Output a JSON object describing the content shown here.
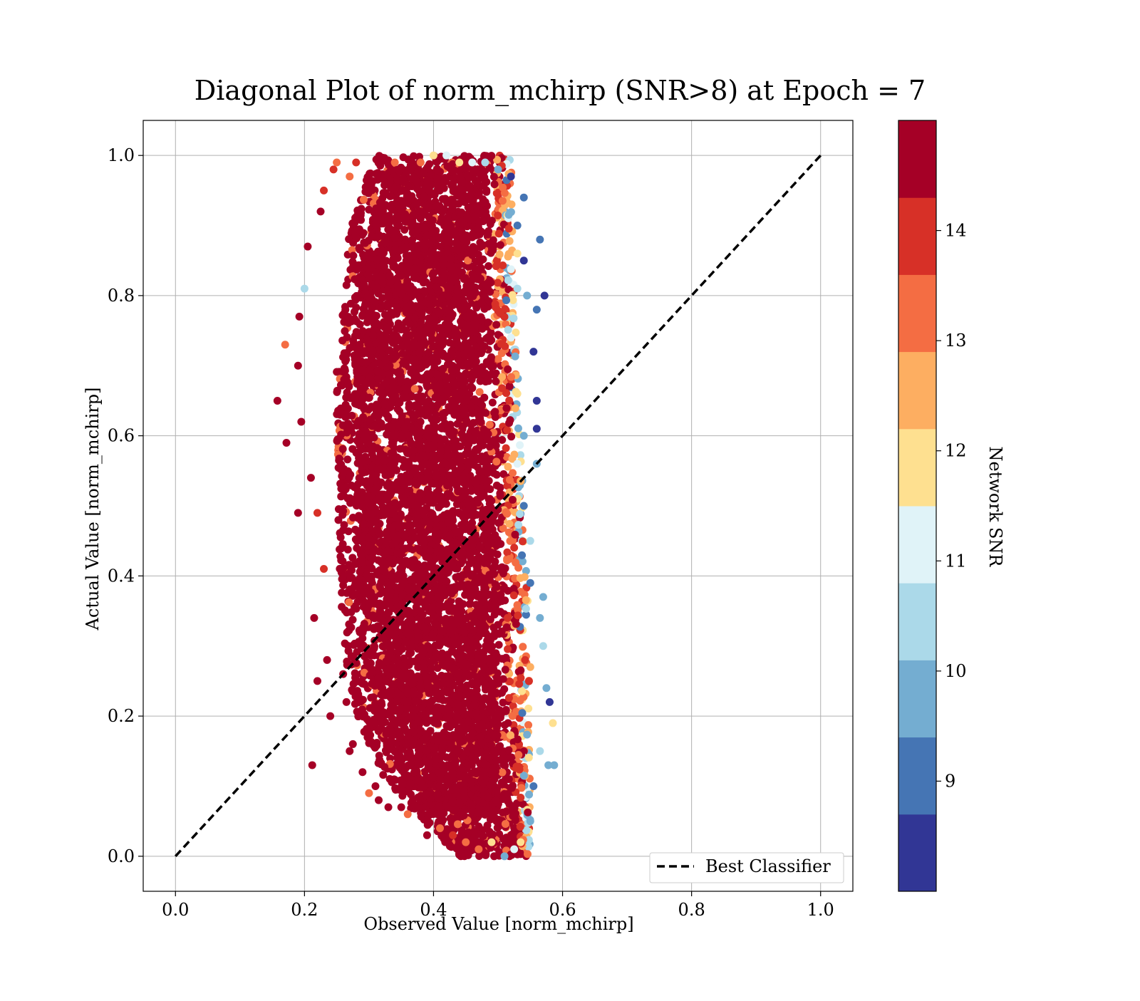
{
  "chart_data": {
    "type": "scatter",
    "title": "Diagonal Plot of norm_mchirp (SNR>8) at Epoch = 7",
    "xlabel": "Observed Value [norm_mchirp]",
    "ylabel": "Actual Value [norm_mchirp]",
    "xlim": [
      -0.05,
      1.05
    ],
    "ylim": [
      -0.05,
      1.05
    ],
    "x_ticks": [
      0.0,
      0.2,
      0.4,
      0.6,
      0.8,
      1.0
    ],
    "x_tick_labels": [
      "0.0",
      "0.2",
      "0.4",
      "0.6",
      "0.8",
      "1.0"
    ],
    "y_ticks": [
      0.0,
      0.2,
      0.4,
      0.6,
      0.8,
      1.0
    ],
    "y_tick_labels": [
      "0.0",
      "0.2",
      "0.4",
      "0.6",
      "0.8",
      "1.0"
    ],
    "grid": true,
    "legend": {
      "placement": "lower-right",
      "entries": [
        {
          "label": "Best Classifier",
          "style": "dashed",
          "color": "#000000"
        }
      ]
    },
    "reference_line": {
      "label": "Best Classifier",
      "x": [
        0.0,
        1.0
      ],
      "y": [
        0.0,
        1.0
      ],
      "style": "dashed",
      "color": "#000000"
    },
    "colorbar": {
      "label": "Network SNR",
      "range": [
        8.0,
        15.0
      ],
      "ticks": [
        9,
        10,
        11,
        12,
        13,
        14
      ],
      "tick_labels": [
        "9",
        "10",
        "11",
        "12",
        "13",
        "14"
      ],
      "colors": [
        "#313695",
        "#4575b4",
        "#74add1",
        "#abd9e9",
        "#e0f3f8",
        "#fee090",
        "#fdae61",
        "#f46d43",
        "#d73027",
        "#a50026"
      ]
    },
    "series": [
      {
        "description_points": "x (observed), y (actual), snr",
        "points": [
          [
            0.158,
            0.65,
            15
          ],
          [
            0.17,
            0.73,
            13.5
          ],
          [
            0.172,
            0.59,
            15
          ],
          [
            0.19,
            0.7,
            15
          ],
          [
            0.192,
            0.77,
            15
          ],
          [
            0.195,
            0.62,
            15
          ],
          [
            0.19,
            0.49,
            15
          ],
          [
            0.2,
            0.81,
            10.5
          ],
          [
            0.205,
            0.87,
            15
          ],
          [
            0.21,
            0.54,
            15
          ],
          [
            0.212,
            0.13,
            15
          ],
          [
            0.215,
            0.34,
            15
          ],
          [
            0.22,
            0.25,
            15
          ],
          [
            0.22,
            0.49,
            14
          ],
          [
            0.225,
            0.92,
            15
          ],
          [
            0.23,
            0.95,
            14
          ],
          [
            0.23,
            0.41,
            14
          ],
          [
            0.235,
            0.28,
            15
          ],
          [
            0.24,
            0.2,
            15
          ],
          [
            0.245,
            0.98,
            14
          ],
          [
            0.25,
            0.99,
            13
          ],
          [
            0.26,
            0.26,
            15
          ],
          [
            0.265,
            0.22,
            15
          ],
          [
            0.27,
            0.97,
            13.5
          ],
          [
            0.27,
            0.15,
            15
          ],
          [
            0.275,
            0.16,
            15
          ],
          [
            0.28,
            0.99,
            14
          ],
          [
            0.29,
            0.12,
            15
          ],
          [
            0.3,
            0.09,
            13.5
          ],
          [
            0.31,
            0.1,
            15
          ],
          [
            0.315,
            0.08,
            15
          ],
          [
            0.33,
            0.07,
            15
          ],
          [
            0.34,
            0.99,
            13
          ],
          [
            0.35,
            0.07,
            15
          ],
          [
            0.36,
            0.06,
            13
          ],
          [
            0.38,
            0.99,
            13
          ],
          [
            0.39,
            0.03,
            15
          ],
          [
            0.4,
            1.0,
            12
          ],
          [
            0.41,
            0.04,
            13
          ],
          [
            0.42,
            1.0,
            11
          ],
          [
            0.43,
            0.03,
            14
          ],
          [
            0.44,
            0.99,
            12
          ],
          [
            0.45,
            0.02,
            13
          ],
          [
            0.46,
            0.99,
            11
          ],
          [
            0.47,
            0.01,
            13.5
          ],
          [
            0.48,
            0.99,
            10.5
          ],
          [
            0.49,
            0.02,
            12
          ],
          [
            0.5,
            0.98,
            9.5
          ],
          [
            0.51,
            0.0,
            10
          ],
          [
            0.52,
            0.97,
            8.5
          ],
          [
            0.525,
            0.01,
            11
          ],
          [
            0.53,
            0.9,
            9
          ],
          [
            0.535,
            0.02,
            12
          ],
          [
            0.54,
            0.85,
            8.5
          ],
          [
            0.545,
            0.8,
            9.5
          ],
          [
            0.55,
            0.05,
            10
          ],
          [
            0.555,
            0.72,
            8.5
          ],
          [
            0.555,
            0.1,
            9
          ],
          [
            0.56,
            0.65,
            8.5
          ],
          [
            0.56,
            0.56,
            9.5
          ],
          [
            0.565,
            0.88,
            9
          ],
          [
            0.565,
            0.15,
            10.5
          ],
          [
            0.57,
            0.37,
            10
          ],
          [
            0.57,
            0.3,
            10.5
          ],
          [
            0.572,
            0.8,
            8.5
          ],
          [
            0.575,
            0.24,
            9.5
          ],
          [
            0.578,
            0.13,
            10
          ],
          [
            0.58,
            0.22,
            8.5
          ],
          [
            0.585,
            0.19,
            12
          ],
          [
            0.587,
            0.13,
            10
          ],
          [
            0.56,
            0.78,
            9
          ],
          [
            0.56,
            0.61,
            8.5
          ],
          [
            0.55,
            0.39,
            9
          ],
          [
            0.55,
            0.27,
            12.5
          ],
          [
            0.565,
            0.34,
            10
          ],
          [
            0.55,
            0.45,
            10.5
          ],
          [
            0.54,
            0.5,
            9
          ],
          [
            0.53,
            0.56,
            11
          ],
          [
            0.54,
            0.6,
            10
          ],
          [
            0.53,
            0.66,
            12
          ],
          [
            0.52,
            0.74,
            11
          ],
          [
            0.53,
            0.81,
            10.5
          ],
          [
            0.53,
            0.86,
            12
          ],
          [
            0.54,
            0.94,
            9
          ]
        ]
      }
    ],
    "dense_cloud": {
      "note": "thousands of overlapping points; majority at high SNR",
      "y_min": 0.0,
      "y_max": 1.0,
      "left_edge_at_y": [
        [
          0.0,
          0.44
        ],
        [
          0.1,
          0.33
        ],
        [
          0.2,
          0.28
        ],
        [
          0.3,
          0.26
        ],
        [
          0.5,
          0.25
        ],
        [
          0.7,
          0.25
        ],
        [
          0.9,
          0.27
        ],
        [
          1.0,
          0.31
        ]
      ],
      "right_edge_at_y": [
        [
          0.0,
          0.55
        ],
        [
          0.2,
          0.55
        ],
        [
          0.4,
          0.545
        ],
        [
          0.6,
          0.535
        ],
        [
          0.8,
          0.525
        ],
        [
          1.0,
          0.52
        ]
      ]
    }
  }
}
